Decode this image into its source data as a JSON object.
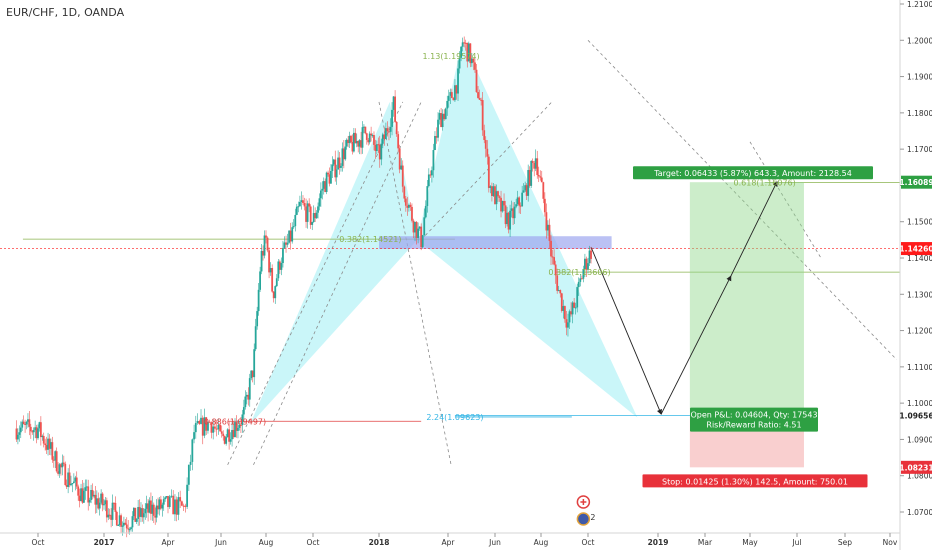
{
  "header": {
    "symbol_title": "EUR/CHF, 1D, OANDA"
  },
  "colors": {
    "up": "#26a69a",
    "down": "#ef5350",
    "pattern": "#b8f3f7",
    "fib_green": "#8ab34f",
    "fib_red": "#e04040",
    "fib_blue": "#33b5e5",
    "zone": "#9ea7f0",
    "target": "#2ea043",
    "stop": "#e8313a",
    "price_tag": "#ff1a1a"
  },
  "chart_data": {
    "type": "candlestick",
    "symbol": "EUR/CHF",
    "timeframe": "1D",
    "source": "OANDA",
    "ylim": [
      1.065,
      1.21
    ],
    "y_ticks": [
      "1.07000",
      "1.08000",
      "1.09000",
      "1.10000",
      "1.11000",
      "1.12000",
      "1.13000",
      "1.14000",
      "1.15000",
      "1.16000",
      "1.17000",
      "1.18000",
      "1.19000",
      "1.20000",
      "1.21000"
    ],
    "x_ticks": [
      "Oct",
      "2017",
      "Apr",
      "Jun",
      "Aug",
      "Oct",
      "2018",
      "Apr",
      "Jun",
      "Aug",
      "Oct",
      "2019",
      "Mar",
      "May",
      "Jul",
      "Sep",
      "Nov"
    ],
    "bold_x_ticks": [
      "2017",
      "2018",
      "2019"
    ],
    "price_path": [
      [
        "2016-09-01",
        1.093
      ],
      [
        "2016-10-01",
        1.093
      ],
      [
        "2016-11-01",
        1.082
      ],
      [
        "2016-12-01",
        1.075
      ],
      [
        "2017-01-01",
        1.072
      ],
      [
        "2017-02-01",
        1.067
      ],
      [
        "2017-03-01",
        1.07
      ],
      [
        "2017-04-01",
        1.072
      ],
      [
        "2017-04-20",
        1.071
      ],
      [
        "2017-05-01",
        1.092
      ],
      [
        "2017-05-20",
        1.095
      ],
      [
        "2017-06-01",
        1.09
      ],
      [
        "2017-06-15",
        1.093
      ],
      [
        "2017-07-01",
        1.096
      ],
      [
        "2017-07-15",
        1.11
      ],
      [
        "2017-07-25",
        1.14
      ],
      [
        "2017-08-01",
        1.145
      ],
      [
        "2017-08-10",
        1.13
      ],
      [
        "2017-08-20",
        1.14
      ],
      [
        "2017-09-01",
        1.145
      ],
      [
        "2017-09-15",
        1.155
      ],
      [
        "2017-10-01",
        1.15
      ],
      [
        "2017-10-15",
        1.16
      ],
      [
        "2017-11-01",
        1.165
      ],
      [
        "2017-11-15",
        1.17
      ],
      [
        "2017-12-01",
        1.172
      ],
      [
        "2017-12-15",
        1.175
      ],
      [
        "2018-01-01",
        1.168
      ],
      [
        "2018-01-20",
        1.182
      ],
      [
        "2018-02-01",
        1.16
      ],
      [
        "2018-02-15",
        1.15
      ],
      [
        "2018-02-25",
        1.145
      ],
      [
        "2018-03-10",
        1.165
      ],
      [
        "2018-03-20",
        1.178
      ],
      [
        "2018-04-01",
        1.182
      ],
      [
        "2018-04-15",
        1.19
      ],
      [
        "2018-04-19",
        1.2
      ],
      [
        "2018-05-01",
        1.195
      ],
      [
        "2018-05-15",
        1.18
      ],
      [
        "2018-05-25",
        1.16
      ],
      [
        "2018-06-05",
        1.155
      ],
      [
        "2018-06-20",
        1.15
      ],
      [
        "2018-07-10",
        1.158
      ],
      [
        "2018-07-25",
        1.168
      ],
      [
        "2018-08-05",
        1.155
      ],
      [
        "2018-08-15",
        1.14
      ],
      [
        "2018-08-25",
        1.13
      ],
      [
        "2018-09-05",
        1.122
      ],
      [
        "2018-09-15",
        1.128
      ],
      [
        "2018-09-25",
        1.137
      ],
      [
        "2018-10-05",
        1.142
      ]
    ],
    "last_price": "1.14260",
    "harmonic_pattern": {
      "points": [
        [
          "2017-07-10",
          1.094
        ],
        [
          "2018-01-15",
          1.183
        ],
        [
          "2018-02-20",
          1.145
        ],
        [
          "2018-04-20",
          1.2
        ],
        [
          "2018-12-05",
          1.096
        ]
      ],
      "ratios": [
        {
          "label": "0.382(1.14521)",
          "date": "2017-12-20",
          "price": 1.1452,
          "color_key": "fib_green"
        },
        {
          "label": "1.13(1.19574)",
          "date": "2018-04-05",
          "price": 1.1957,
          "color_key": "fib_green"
        },
        {
          "label": "0.886(1.09497)",
          "date": "2017-06-20",
          "price": 1.095,
          "color_key": "fib_red"
        },
        {
          "label": "2.24(1.09623)",
          "date": "2018-04-10",
          "price": 1.0962,
          "color_key": "fib_blue"
        },
        {
          "label": "0.382(1.13606)",
          "date": "2018-09-20",
          "price": 1.1361,
          "color_key": "fib_green"
        },
        {
          "label": "0.618(1.16076)",
          "date": "2019-05-20",
          "price": 1.1608,
          "color_key": "fib_green"
        }
      ]
    },
    "position": {
      "entry_price": "1.09656",
      "target_price": "1.16089",
      "stop_price": "1.08231",
      "target_label": "Target: 0.06433 (5.87%) 643.3, Amount: 2128.54",
      "open_pl_label": "Open P&L: 0.04604, Qty: 17543",
      "rr_label": "Risk/Reward Ratio: 4.51",
      "stop_label": "Stop: 0.01425 (1.30%) 142.5, Amount: 750.01"
    },
    "projection": [
      [
        "2018-10-05",
        1.143
      ],
      [
        "2019-01-05",
        1.097
      ],
      [
        "2019-04-05",
        1.135
      ],
      [
        "2019-06-05",
        1.161
      ]
    ],
    "event_badge": "2"
  }
}
